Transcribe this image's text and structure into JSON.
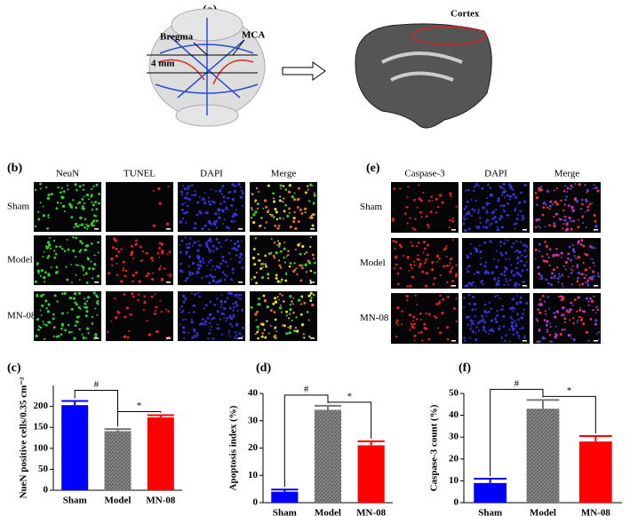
{
  "panel_a": {
    "label": "(a)",
    "bregma": "Bregma",
    "mca": "MCA",
    "distance": "4 mm",
    "cortex": "Cortex"
  },
  "panel_b": {
    "label": "(b)",
    "columns": [
      "NeuN",
      "TUNEL",
      "DAPI",
      "Merge"
    ],
    "rows": [
      "Sham",
      "Model",
      "MN-08"
    ]
  },
  "panel_e": {
    "label": "(e)",
    "columns": [
      "Caspase-3",
      "DAPI",
      "Merge"
    ],
    "rows": [
      "Sham",
      "Model",
      "MN-08"
    ]
  },
  "chart_data": [
    {
      "type": "bar",
      "label": "(c)",
      "ylabel": "NueN positive cells/0.35 cm⁻²",
      "categories": [
        "Sham",
        "Model",
        "MN-08"
      ],
      "values": [
        203,
        141,
        174
      ],
      "errors": [
        10,
        5,
        5
      ],
      "colors": [
        "#0000ff",
        "#777777",
        "#ff0000"
      ],
      "ylim": [
        0,
        250
      ],
      "yticks": [
        0,
        50,
        100,
        150,
        200
      ],
      "annotations": [
        "#",
        "*"
      ]
    },
    {
      "type": "bar",
      "label": "(d)",
      "ylabel": "Apoptosis index (%)",
      "categories": [
        "Sham",
        "Model",
        "MN-08"
      ],
      "values": [
        4,
        34,
        21
      ],
      "errors": [
        0.8,
        1.5,
        1.5
      ],
      "colors": [
        "#0000ff",
        "#777777",
        "#ff0000"
      ],
      "ylim": [
        0,
        40
      ],
      "yticks": [
        0,
        10,
        20,
        30,
        40
      ],
      "annotations": [
        "#",
        "*"
      ]
    },
    {
      "type": "bar",
      "label": "(f)",
      "ylabel": "Caspase-3 count (%)",
      "categories": [
        "Sham",
        "Model",
        "MN-08"
      ],
      "values": [
        9,
        43,
        28
      ],
      "errors": [
        2,
        4,
        2.5
      ],
      "colors": [
        "#0000ff",
        "#777777",
        "#ff0000"
      ],
      "ylim": [
        0,
        50
      ],
      "yticks": [
        0,
        10,
        20,
        30,
        40,
        50
      ],
      "annotations": [
        "#",
        "*"
      ]
    }
  ]
}
